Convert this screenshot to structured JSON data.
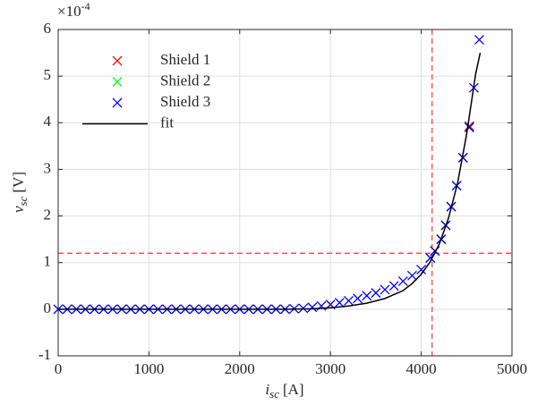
{
  "chart_data": {
    "type": "scatter",
    "x_label": "i",
    "x_label_sub": "sc",
    "x_label_unit": "[A]",
    "y_label": "v",
    "y_label_sub": "sc",
    "y_label_unit": "[V]",
    "multiplier": "×10",
    "multiplier_exp": "-4",
    "xlim": [
      0,
      5000
    ],
    "xticks": [
      0,
      1000,
      2000,
      3000,
      4000,
      5000
    ],
    "ylim": [
      -1,
      6
    ],
    "yticks": [
      -1,
      0,
      1,
      2,
      3,
      4,
      5,
      6
    ],
    "grid": true,
    "legend": "upper-left",
    "ref_lines": {
      "color": "#ff3333",
      "x": 4120,
      "y": 1.2
    },
    "series": [
      {
        "name": "Shield 1",
        "color": "#ff0000",
        "marker": "x",
        "x": [
          4100,
          4150,
          4220,
          4270,
          4330,
          4390,
          4460,
          4530
        ],
        "values": [
          1.1,
          1.25,
          1.5,
          1.8,
          2.2,
          2.65,
          3.25,
          3.93
        ]
      },
      {
        "name": "Shield 2",
        "color": "#00ff00",
        "marker": "x",
        "x": [
          4100,
          4150,
          4220,
          4270,
          4330,
          4390,
          4460,
          4530
        ],
        "values": [
          1.1,
          1.25,
          1.5,
          1.8,
          2.2,
          2.65,
          3.25,
          3.9
        ]
      },
      {
        "name": "Shield 3",
        "color": "#0000ff",
        "marker": "x",
        "x": [
          0,
          100,
          200,
          300,
          400,
          500,
          600,
          700,
          800,
          900,
          1000,
          1100,
          1200,
          1300,
          1400,
          1500,
          1600,
          1700,
          1800,
          1900,
          2000,
          2100,
          2200,
          2300,
          2400,
          2500,
          2600,
          2700,
          2800,
          2900,
          3000,
          3100,
          3200,
          3300,
          3400,
          3500,
          3600,
          3700,
          3800,
          3900,
          4000,
          4100,
          4150,
          4220,
          4270,
          4330,
          4390,
          4460,
          4530,
          4580,
          4640
        ],
        "values": [
          0,
          0,
          0,
          0,
          0,
          0,
          0,
          0,
          0,
          0,
          0,
          0,
          0,
          0,
          0,
          0,
          0,
          0,
          0,
          0,
          0,
          0,
          0,
          0,
          0,
          0,
          0.01,
          0.02,
          0.04,
          0.07,
          0.1,
          0.14,
          0.18,
          0.23,
          0.29,
          0.35,
          0.42,
          0.5,
          0.6,
          0.72,
          0.85,
          1.1,
          1.25,
          1.5,
          1.8,
          2.2,
          2.65,
          3.25,
          3.9,
          4.75,
          5.78
        ]
      },
      {
        "name": "fit",
        "color": "#000000",
        "marker": "line",
        "x": [
          0,
          2500,
          2800,
          3000,
          3200,
          3400,
          3600,
          3800,
          3900,
          4000,
          4100,
          4200,
          4300,
          4400,
          4500,
          4600,
          4650
        ],
        "values": [
          0,
          0,
          0.01,
          0.03,
          0.07,
          0.13,
          0.23,
          0.4,
          0.55,
          0.75,
          1.02,
          1.4,
          1.95,
          2.7,
          3.75,
          5.05,
          5.5
        ]
      }
    ]
  }
}
